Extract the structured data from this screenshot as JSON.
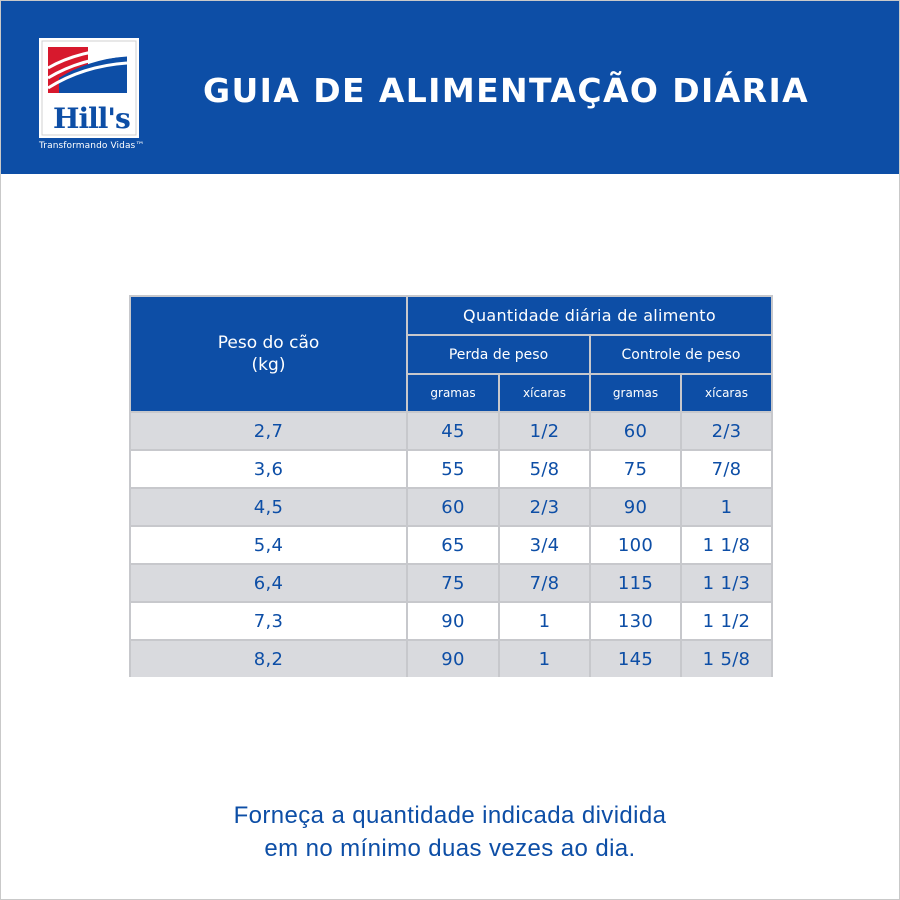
{
  "header": {
    "title": "GUIA DE ALIMENTAÇÃO DIÁRIA",
    "logo_text": "Hill's",
    "tagline": "Transformando Vidas™",
    "logo_icon": "hills-logo-icon"
  },
  "colors": {
    "brand_blue": "#0d4ea6",
    "row_gray": "#d9dade",
    "grid_gray": "#c7c8cc",
    "logo_red": "#d7192d"
  },
  "table": {
    "weight_header_line1": "Peso do cão",
    "weight_header_line2": "(kg)",
    "quantity_header": "Quantidade diária de alimento",
    "weight_loss_header": "Perda de peso",
    "weight_control_header": "Controle de peso",
    "units": [
      "gramas",
      "xícaras",
      "gramas",
      "xícaras"
    ],
    "rows": [
      {
        "peso": "2,7",
        "loss_g": "45",
        "loss_cups": "1/2",
        "ctrl_g": "60",
        "ctrl_cups": "2/3"
      },
      {
        "peso": "3,6",
        "loss_g": "55",
        "loss_cups": "5/8",
        "ctrl_g": "75",
        "ctrl_cups": "7/8"
      },
      {
        "peso": "4,5",
        "loss_g": "60",
        "loss_cups": "2/3",
        "ctrl_g": "90",
        "ctrl_cups": "1"
      },
      {
        "peso": "5,4",
        "loss_g": "65",
        "loss_cups": "3/4",
        "ctrl_g": "100",
        "ctrl_cups": "1 1/8"
      },
      {
        "peso": "6,4",
        "loss_g": "75",
        "loss_cups": "7/8",
        "ctrl_g": "115",
        "ctrl_cups": "1 1/3"
      },
      {
        "peso": "7,3",
        "loss_g": "90",
        "loss_cups": "1",
        "ctrl_g": "130",
        "ctrl_cups": "1 1/2"
      },
      {
        "peso": "8,2",
        "loss_g": "90",
        "loss_cups": "1",
        "ctrl_g": "145",
        "ctrl_cups": "1 5/8"
      }
    ]
  },
  "footer": {
    "line1": "Forneça a quantidade indicada dividida",
    "line2": "em no mínimo duas vezes ao dia."
  }
}
